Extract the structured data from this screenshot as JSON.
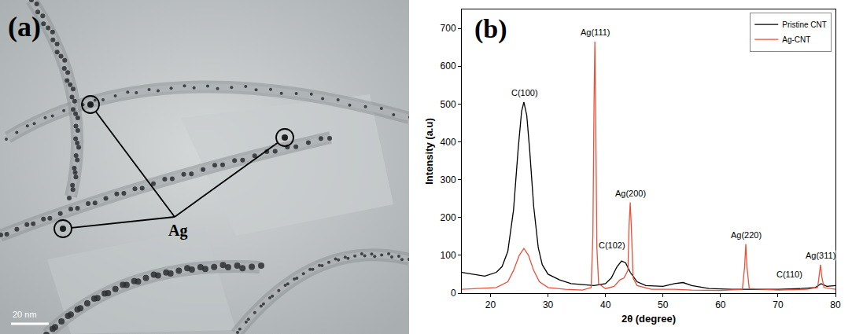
{
  "image_panel": {
    "letter": "(a)",
    "label": "Ag",
    "scale_bar": "20 nm"
  },
  "chart_data": {
    "type": "line",
    "letter": "(b)",
    "x_label": "2θ (degree)",
    "y_label": "Intensity (a.u)",
    "xlim": [
      15,
      80
    ],
    "xticks": [
      20,
      30,
      40,
      50,
      60,
      70,
      80
    ],
    "ylim": [
      0,
      750
    ],
    "yticks": [
      0,
      100,
      200,
      300,
      400,
      500,
      600,
      700
    ],
    "legend": "upper right",
    "series": [
      {
        "name": "Pristine CNT",
        "color": "#000000",
        "x": [
          15,
          17,
          19,
          21,
          22,
          23,
          24,
          24.8,
          25.4,
          25.8,
          26.3,
          26.8,
          27.5,
          28.3,
          29,
          30,
          32,
          34,
          36,
          38,
          40,
          41,
          42,
          42.8,
          43.5,
          44.3,
          45.5,
          47,
          50,
          52,
          53.5,
          55,
          58,
          62,
          66,
          70,
          74,
          76.5,
          77.5,
          78.5,
          80
        ],
        "values": [
          55,
          50,
          45,
          55,
          70,
          110,
          220,
          380,
          480,
          505,
          470,
          380,
          230,
          120,
          75,
          50,
          35,
          25,
          22,
          20,
          25,
          40,
          70,
          85,
          80,
          55,
          30,
          20,
          18,
          25,
          28,
          20,
          12,
          10,
          10,
          10,
          12,
          15,
          25,
          18,
          20
        ]
      },
      {
        "name": "Ag-CNT",
        "color": "#e8503a",
        "x": [
          15,
          18,
          21,
          23,
          24,
          25,
          25.8,
          26.6,
          27.5,
          28.5,
          30,
          33,
          36,
          37.5,
          37.8,
          38.0,
          38.15,
          38.3,
          38.5,
          38.8,
          40,
          41.5,
          42.5,
          43.2,
          43.9,
          44.1,
          44.3,
          44.5,
          44.8,
          45.5,
          48,
          52,
          55,
          60,
          63.8,
          64.2,
          64.4,
          64.6,
          65,
          70,
          75,
          76.9,
          77.2,
          77.4,
          77.6,
          78,
          80
        ],
        "values": [
          10,
          12,
          15,
          30,
          60,
          100,
          118,
          100,
          60,
          30,
          15,
          10,
          8,
          15,
          150,
          500,
          665,
          450,
          120,
          25,
          12,
          18,
          35,
          40,
          60,
          180,
          240,
          170,
          40,
          20,
          10,
          10,
          8,
          7,
          10,
          70,
          130,
          70,
          12,
          8,
          10,
          15,
          50,
          75,
          45,
          15,
          10
        ]
      }
    ],
    "annotations": [
      {
        "text": "C(100)",
        "x": 26,
        "y": 515
      },
      {
        "text": "Ag(111)",
        "x": 38.2,
        "y": 675
      },
      {
        "text": "Ag(200)",
        "x": 44.4,
        "y": 250
      },
      {
        "text": "C(102)",
        "x": 41.2,
        "y": 112
      },
      {
        "text": "Ag(220)",
        "x": 64.4,
        "y": 140
      },
      {
        "text": "C(110)",
        "x": 72,
        "y": 35
      },
      {
        "text": "Ag(311)",
        "x": 77.4,
        "y": 85
      }
    ]
  }
}
